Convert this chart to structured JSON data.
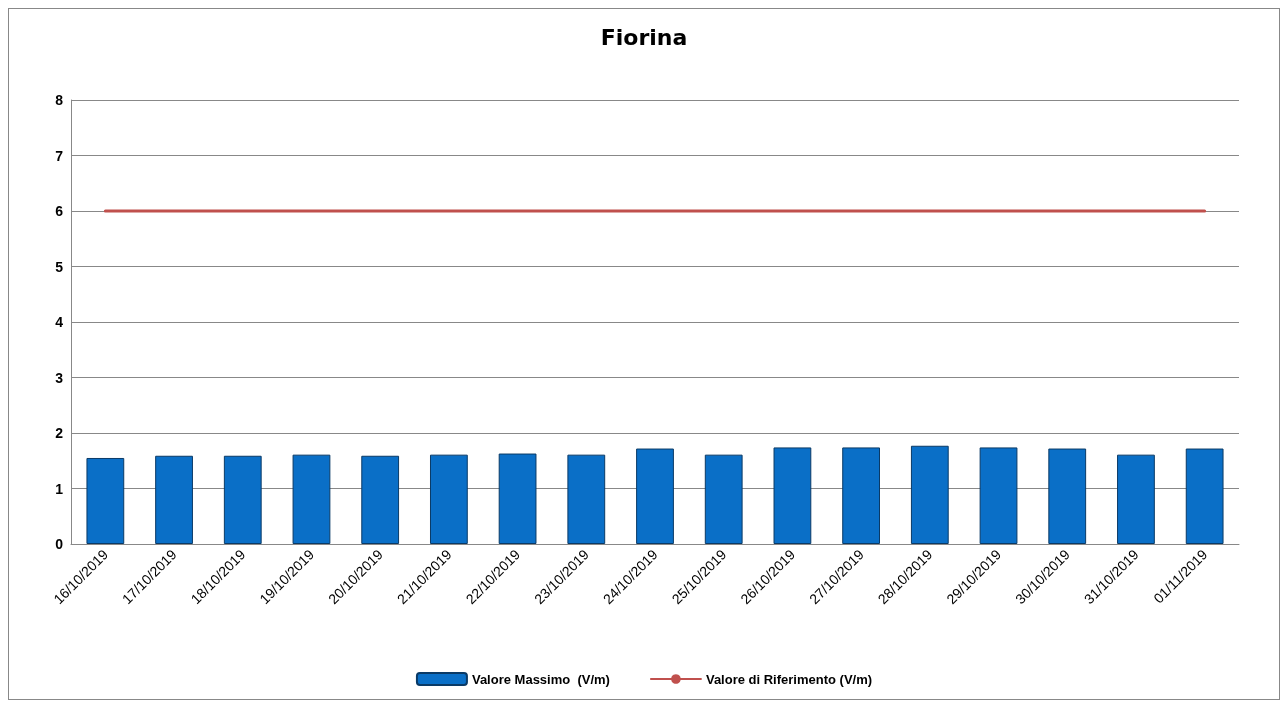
{
  "chart_data": {
    "type": "bar",
    "title": "Fiorina",
    "categories": [
      "16/10/2019",
      "17/10/2019",
      "18/10/2019",
      "19/10/2019",
      "20/10/2019",
      "21/10/2019",
      "22/10/2019",
      "23/10/2019",
      "24/10/2019",
      "25/10/2019",
      "26/10/2019",
      "27/10/2019",
      "28/10/2019",
      "29/10/2019",
      "30/10/2019",
      "31/10/2019",
      "01/11/2019"
    ],
    "series": [
      {
        "name": "Valore Massimo  (V/m)",
        "color": "#0a6fc7",
        "values": [
          1.55,
          1.59,
          1.59,
          1.61,
          1.59,
          1.61,
          1.63,
          1.61,
          1.72,
          1.61,
          1.74,
          1.74,
          1.77,
          1.74,
          1.72,
          1.61,
          1.72
        ]
      },
      {
        "name": "Valore di Riferimento (V/m)",
        "type": "line",
        "color": "#c0504d",
        "values": [
          6,
          6,
          6,
          6,
          6,
          6,
          6,
          6,
          6,
          6,
          6,
          6,
          6,
          6,
          6,
          6,
          6
        ]
      }
    ],
    "ylim": [
      0,
      8
    ],
    "yticks": [
      0,
      1,
      2,
      3,
      4,
      5,
      6,
      7,
      8
    ],
    "grid": "y",
    "legend": "bottom",
    "marker": "none",
    "line_style": "solid"
  }
}
